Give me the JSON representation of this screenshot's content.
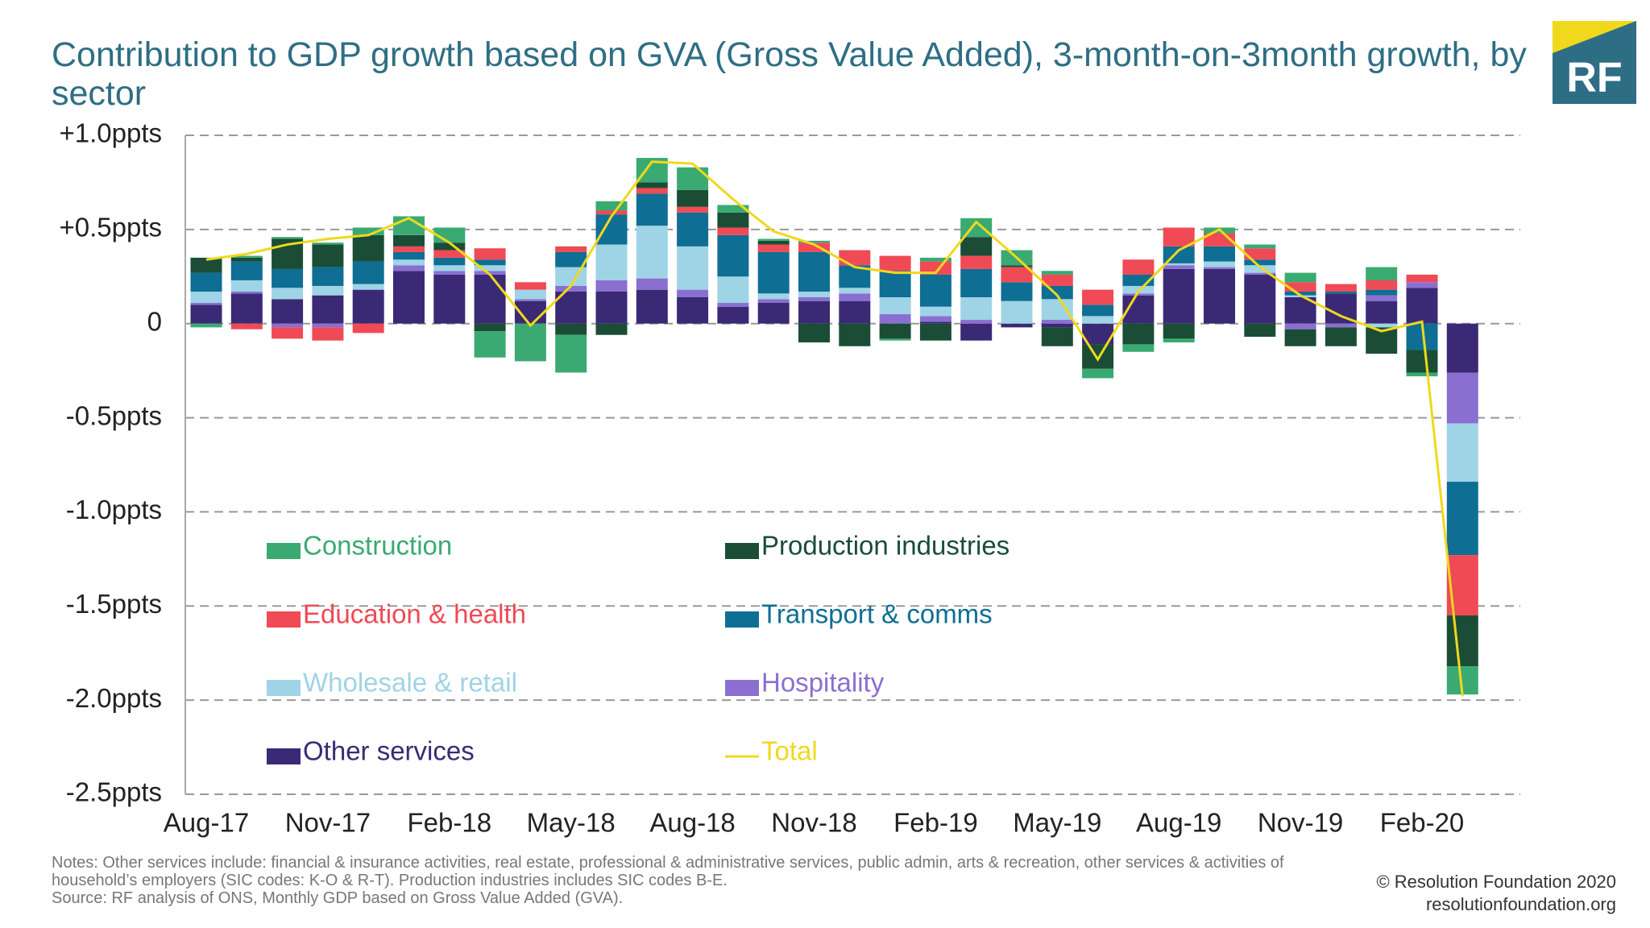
{
  "chart_data": {
    "type": "stacked_bar",
    "title": "Contribution to GDP growth based on GVA (Gross Value Added), 3-month-on-3month growth, by sector",
    "categories": [
      "Aug-17",
      null,
      null,
      "Nov-17",
      null,
      null,
      "Feb-18",
      null,
      null,
      "May-18",
      null,
      null,
      "Aug-18",
      null,
      null,
      "Nov-18",
      null,
      null,
      "Feb-19",
      null,
      null,
      "May-19",
      null,
      null,
      "Aug-19",
      null,
      null,
      "Nov-19",
      null,
      null,
      "Feb-20",
      null
    ],
    "ylim": [
      -2.5,
      1.0
    ],
    "yticks": [
      {
        "value": 1.0,
        "label": "+1.0ppts"
      },
      {
        "value": 0.5,
        "label": "+0.5ppts"
      },
      0,
      {
        "value": -0.5,
        "label": "-0.5ppts"
      },
      {
        "value": -1.0,
        "label": "-1.0ppts"
      },
      {
        "value": -1.5,
        "label": "-1.5ppts"
      },
      {
        "value": -2.0,
        "label": "-2.0ppts"
      },
      {
        "value": -2.5,
        "label": "-2.5ppts"
      }
    ],
    "grid": true,
    "series": [
      {
        "name": "Construction",
        "color": "#3aaa72",
        "values": [
          -0.02,
          0.01,
          0.01,
          0.01,
          0.04,
          0.1,
          0.08,
          -0.14,
          -0.2,
          -0.2,
          0.05,
          0.13,
          0.12,
          0.04,
          0.01,
          0.01,
          0,
          -0.01,
          0.02,
          0.1,
          0.08,
          0.02,
          -0.05,
          -0.04,
          -0.02,
          0.03,
          0.02,
          0.05,
          0,
          0.07,
          -0.02,
          -0.15
        ]
      },
      {
        "name": "Production industries",
        "color": "#1b4d36",
        "values": [
          0.08,
          0.02,
          0.16,
          0.12,
          0.14,
          0.06,
          0.04,
          -0.04,
          0,
          -0.06,
          -0.06,
          0.03,
          0.09,
          0.08,
          0.02,
          -0.1,
          -0.12,
          -0.08,
          -0.09,
          0.1,
          0.01,
          -0.1,
          -0.13,
          -0.11,
          -0.08,
          0,
          -0.07,
          -0.09,
          -0.1,
          -0.14,
          -0.12,
          -0.27
        ]
      },
      {
        "name": "Education & health",
        "color": "#ef4a55",
        "values": [
          0,
          -0.03,
          -0.06,
          -0.07,
          -0.05,
          0.03,
          0.04,
          0.06,
          0.04,
          0.03,
          0.02,
          0.03,
          0.03,
          0.04,
          0.04,
          0.05,
          0.08,
          0.08,
          0.07,
          0.07,
          0.08,
          0.06,
          0.08,
          0.08,
          0.1,
          0.07,
          0.06,
          0.05,
          0.04,
          0.05,
          0.04,
          -0.32
        ]
      },
      {
        "name": "Transport & comms",
        "color": "#0f6e94",
        "values": [
          0.1,
          0.1,
          0.1,
          0.1,
          0.12,
          0.04,
          0.04,
          0.03,
          0,
          0.08,
          0.16,
          0.17,
          0.18,
          0.22,
          0.22,
          0.21,
          0.12,
          0.14,
          0.17,
          0.15,
          0.1,
          0.07,
          0.06,
          0.06,
          0.09,
          0.08,
          0.03,
          0.02,
          0.01,
          0.03,
          -0.14,
          -0.39
        ]
      },
      {
        "name": "Wholesale & retail",
        "color": "#9fd3e6",
        "values": [
          0.06,
          0.06,
          0.06,
          0.05,
          0.03,
          0.03,
          0.03,
          0.03,
          0.05,
          0.1,
          0.19,
          0.28,
          0.23,
          0.14,
          0.03,
          0.03,
          0.03,
          0.09,
          0.05,
          0.12,
          0.12,
          0.11,
          0.04,
          0.04,
          0.01,
          0.03,
          0.04,
          0.01,
          0,
          -0.02,
          0,
          -0.31
        ]
      },
      {
        "name": "Hospitality",
        "color": "#8a6fd0",
        "values": [
          0.01,
          0.01,
          -0.02,
          -0.02,
          0,
          0.03,
          0.02,
          0.02,
          0.01,
          0.03,
          0.06,
          0.06,
          0.04,
          0.02,
          0.02,
          0.02,
          0.04,
          0.05,
          0.03,
          0.02,
          0,
          0.02,
          0,
          0.01,
          0.02,
          0.01,
          0.01,
          -0.03,
          -0.02,
          0.03,
          0.03,
          -0.27
        ]
      },
      {
        "name": "Other services",
        "color": "#3a2a75",
        "values": [
          0.1,
          0.16,
          0.13,
          0.15,
          0.18,
          0.28,
          0.26,
          0.26,
          0.12,
          0.17,
          0.17,
          0.18,
          0.14,
          0.09,
          0.11,
          0.12,
          0.12,
          0,
          0.01,
          -0.09,
          -0.02,
          -0.02,
          -0.11,
          0.15,
          0.29,
          0.29,
          0.26,
          0.14,
          0.16,
          0.12,
          0.19,
          -0.26
        ]
      },
      {
        "name": "Total",
        "color": "#f0d81c",
        "type": "line",
        "values": [
          0.34,
          0.37,
          0.42,
          0.45,
          0.47,
          0.56,
          0.43,
          0.26,
          -0.01,
          0.2,
          0.57,
          0.86,
          0.85,
          0.66,
          0.49,
          0.42,
          0.3,
          0.27,
          0.27,
          0.54,
          0.35,
          0.15,
          -0.19,
          0.17,
          0.39,
          0.5,
          0.3,
          0.15,
          0.04,
          -0.04,
          0.01,
          -1.98
        ]
      }
    ],
    "notes": "Notes: Other services include: financial & insurance activities, real estate, professional & administrative services, public admin, arts & recreation, other services & activities of household’s employers (SIC codes: K-O & R-T). Production industries includes SIC codes B-E.",
    "source": "Source: RF analysis of ONS, Monthly GDP based on Gross Value Added (GVA).",
    "copyright": "© Resolution Foundation 2020",
    "website": "resolutionfoundation.org",
    "logo": "RF"
  }
}
